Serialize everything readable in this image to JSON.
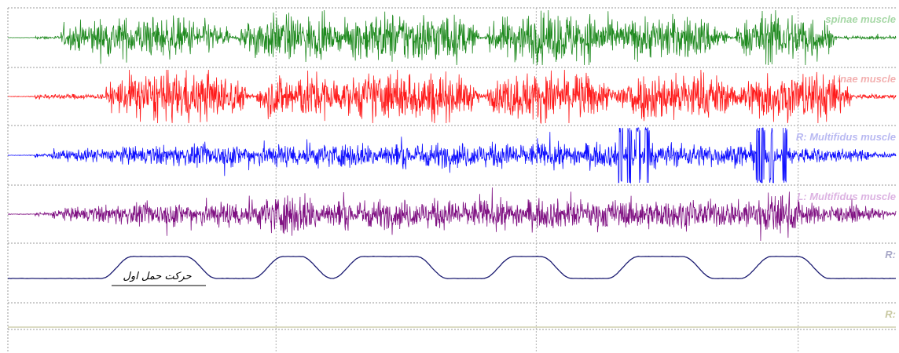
{
  "chart_data": {
    "type": "line",
    "title": "",
    "xlabel": "",
    "ylabel": "",
    "grid": true,
    "x_grid_fractions": [
      0.302,
      0.595,
      0.89
    ],
    "series": [
      {
        "name": "L: Erector spinae muscle",
        "label": "spinae muscle",
        "color": "#1f8a1f",
        "label_color": "#a6d8a6",
        "kind": "emg",
        "bursts": [
          [
            0.06,
            0.25,
            0.75
          ],
          [
            0.26,
            0.37,
            0.85
          ],
          [
            0.37,
            0.53,
            0.95
          ],
          [
            0.54,
            0.69,
            0.95
          ],
          [
            0.68,
            0.81,
            0.8
          ],
          [
            0.82,
            0.93,
            0.95
          ]
        ],
        "baseline": 0.06
      },
      {
        "name": "R: Erector spinae muscle",
        "label": "inae muscle",
        "color": "#ff1a1a",
        "label_color": "#f3b0b0",
        "kind": "emg",
        "bursts": [
          [
            0.11,
            0.27,
            0.95
          ],
          [
            0.28,
            0.38,
            0.9
          ],
          [
            0.37,
            0.53,
            0.95
          ],
          [
            0.54,
            0.68,
            0.95
          ],
          [
            0.68,
            0.82,
            0.95
          ],
          [
            0.82,
            0.95,
            0.95
          ]
        ],
        "baseline": 0.1
      },
      {
        "name": "R: Multifidus muscle",
        "label": "R: Multifidus muscle",
        "color": "#1010ff",
        "label_color": "#b9b9f2",
        "kind": "emg",
        "bursts": [
          [
            0.05,
            0.98,
            0.45
          ]
        ],
        "spikes": [
          0.69,
          0.7,
          0.71,
          0.72,
          0.845,
          0.85,
          0.86,
          0.875
        ],
        "baseline": 0.08
      },
      {
        "name": "L: Multifidus muscle",
        "label": "L: Multifidus muscle",
        "color": "#7f1082",
        "label_color": "#dcb2e2",
        "kind": "emg",
        "bursts": [
          [
            0.05,
            0.99,
            0.55
          ],
          [
            0.28,
            0.36,
            0.8
          ],
          [
            0.82,
            0.9,
            0.8
          ]
        ],
        "baseline": 0.08
      },
      {
        "name": "R:",
        "label": "R:",
        "color": "#1a1a70",
        "label_color": "#a8a8c8",
        "kind": "movement",
        "plateaus": [
          [
            0.14,
            0.2
          ],
          [
            0.31,
            0.33
          ],
          [
            0.4,
            0.46
          ],
          [
            0.57,
            0.6
          ],
          [
            0.71,
            0.76
          ],
          [
            0.86,
            0.89
          ]
        ]
      },
      {
        "name": "R:",
        "label": "R:",
        "color": "#c8c8a0",
        "label_color": "#c8c8a0",
        "kind": "flat"
      }
    ]
  },
  "annotation": {
    "text": "حرکت حمل اول"
  }
}
